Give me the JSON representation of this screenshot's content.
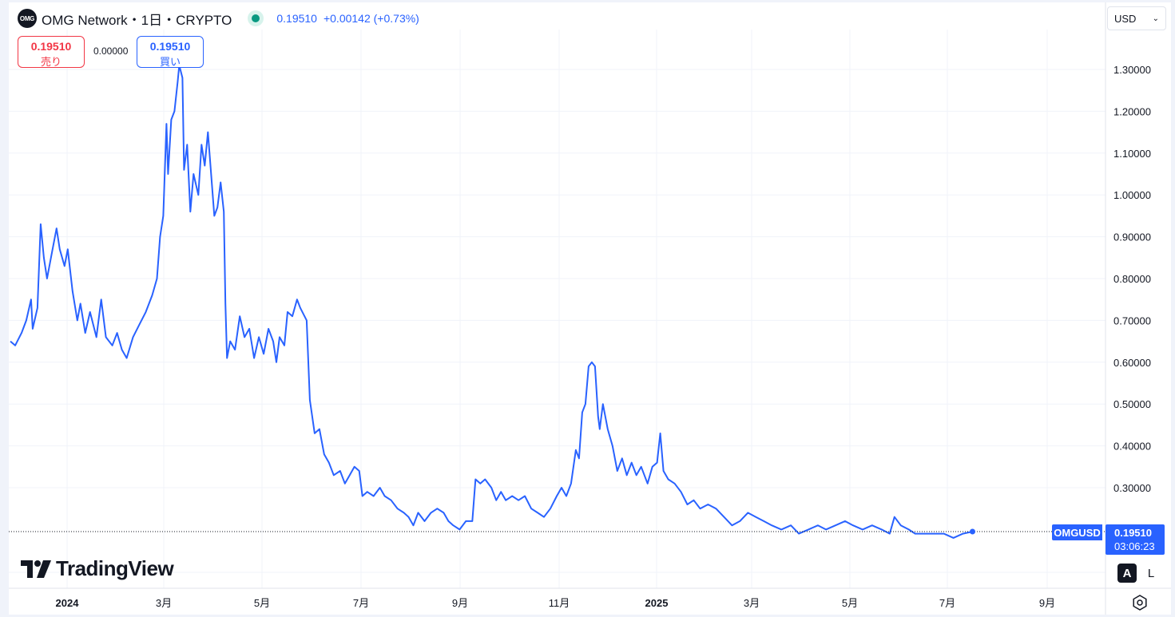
{
  "legend": {
    "logo_text": "OMG",
    "title": "OMG Network・1日・CRYPTO",
    "last_price": "0.19510",
    "change": "+0.00142 (+0.73%)"
  },
  "trade": {
    "sell_price": "0.19510",
    "sell_label": "売り",
    "spread": "0.00000",
    "buy_price": "0.19510",
    "buy_label": "買い"
  },
  "currency": {
    "value": "USD",
    "icon": "chevron-down-icon"
  },
  "price_labels": {
    "symbol": "OMGUSD",
    "price": "0.19510",
    "countdown": "03:06:23"
  },
  "scale_buttons": {
    "auto": "A",
    "log": "L"
  },
  "settings_icon": "gear-icon",
  "watermark": {
    "logo_text": "17",
    "brand": "TradingView"
  },
  "colors": {
    "line": "#2962ff",
    "sell": "#f23645",
    "buy": "#2962ff",
    "status": "#089981",
    "grid": "#f0f3fa"
  },
  "chart_data": {
    "type": "line",
    "series_name": "OMGUSD",
    "y_ticks": [
      "1.30000",
      "1.20000",
      "1.10000",
      "1.00000",
      "0.90000",
      "0.80000",
      "0.70000",
      "0.60000",
      "0.50000",
      "0.40000",
      "0.30000"
    ],
    "x_ticks": [
      {
        "label": "2024",
        "bold": true
      },
      {
        "label": "3月",
        "bold": false
      },
      {
        "label": "5月",
        "bold": false
      },
      {
        "label": "7月",
        "bold": false
      },
      {
        "label": "9月",
        "bold": false
      },
      {
        "label": "11月",
        "bold": false
      },
      {
        "label": "2025",
        "bold": true
      },
      {
        "label": "3月",
        "bold": false
      },
      {
        "label": "5月",
        "bold": false
      },
      {
        "label": "7月",
        "bold": false
      },
      {
        "label": "9月",
        "bold": false
      }
    ],
    "ylim": [
      0.16,
      1.34
    ],
    "x_range": [
      "2023-11-27",
      "2025-10-15"
    ],
    "last_value": 0.1951,
    "points": [
      [
        "2023-11-28",
        0.65
      ],
      [
        "2023-12-01",
        0.64
      ],
      [
        "2023-12-05",
        0.67
      ],
      [
        "2023-12-08",
        0.7
      ],
      [
        "2023-12-11",
        0.75
      ],
      [
        "2023-12-12",
        0.68
      ],
      [
        "2023-12-15",
        0.73
      ],
      [
        "2023-12-17",
        0.93
      ],
      [
        "2023-12-19",
        0.85
      ],
      [
        "2023-12-21",
        0.8
      ],
      [
        "2023-12-24",
        0.86
      ],
      [
        "2023-12-27",
        0.92
      ],
      [
        "2023-12-29",
        0.87
      ],
      [
        "2024-01-01",
        0.83
      ],
      [
        "2024-01-03",
        0.87
      ],
      [
        "2024-01-06",
        0.77
      ],
      [
        "2024-01-09",
        0.7
      ],
      [
        "2024-01-11",
        0.74
      ],
      [
        "2024-01-14",
        0.67
      ],
      [
        "2024-01-17",
        0.72
      ],
      [
        "2024-01-21",
        0.66
      ],
      [
        "2024-01-24",
        0.75
      ],
      [
        "2024-01-27",
        0.66
      ],
      [
        "2024-01-31",
        0.64
      ],
      [
        "2024-02-03",
        0.67
      ],
      [
        "2024-02-06",
        0.63
      ],
      [
        "2024-02-09",
        0.61
      ],
      [
        "2024-02-13",
        0.66
      ],
      [
        "2024-02-17",
        0.69
      ],
      [
        "2024-02-21",
        0.72
      ],
      [
        "2024-02-25",
        0.76
      ],
      [
        "2024-02-28",
        0.8
      ],
      [
        "2024-03-01",
        0.9
      ],
      [
        "2024-03-03",
        0.95
      ],
      [
        "2024-03-05",
        1.17
      ],
      [
        "2024-03-06",
        1.05
      ],
      [
        "2024-03-08",
        1.18
      ],
      [
        "2024-03-10",
        1.2
      ],
      [
        "2024-03-12",
        1.27
      ],
      [
        "2024-03-13",
        1.31
      ],
      [
        "2024-03-15",
        1.28
      ],
      [
        "2024-03-16",
        1.06
      ],
      [
        "2024-03-18",
        1.12
      ],
      [
        "2024-03-20",
        0.96
      ],
      [
        "2024-03-22",
        1.05
      ],
      [
        "2024-03-25",
        1.0
      ],
      [
        "2024-03-27",
        1.12
      ],
      [
        "2024-03-29",
        1.07
      ],
      [
        "2024-03-31",
        1.15
      ],
      [
        "2024-04-02",
        1.05
      ],
      [
        "2024-04-04",
        0.95
      ],
      [
        "2024-04-06",
        0.97
      ],
      [
        "2024-04-08",
        1.03
      ],
      [
        "2024-04-10",
        0.96
      ],
      [
        "2024-04-11",
        0.74
      ],
      [
        "2024-04-12",
        0.61
      ],
      [
        "2024-04-14",
        0.65
      ],
      [
        "2024-04-17",
        0.63
      ],
      [
        "2024-04-20",
        0.71
      ],
      [
        "2024-04-23",
        0.66
      ],
      [
        "2024-04-26",
        0.68
      ],
      [
        "2024-04-29",
        0.61
      ],
      [
        "2024-05-02",
        0.66
      ],
      [
        "2024-05-05",
        0.62
      ],
      [
        "2024-05-08",
        0.68
      ],
      [
        "2024-05-11",
        0.65
      ],
      [
        "2024-05-13",
        0.6
      ],
      [
        "2024-05-15",
        0.66
      ],
      [
        "2024-05-18",
        0.64
      ],
      [
        "2024-05-20",
        0.72
      ],
      [
        "2024-05-23",
        0.71
      ],
      [
        "2024-05-26",
        0.75
      ],
      [
        "2024-05-28",
        0.73
      ],
      [
        "2024-06-01",
        0.7
      ],
      [
        "2024-06-03",
        0.51
      ],
      [
        "2024-06-06",
        0.43
      ],
      [
        "2024-06-09",
        0.44
      ],
      [
        "2024-06-12",
        0.38
      ],
      [
        "2024-06-15",
        0.36
      ],
      [
        "2024-06-18",
        0.33
      ],
      [
        "2024-06-22",
        0.34
      ],
      [
        "2024-06-25",
        0.31
      ],
      [
        "2024-06-28",
        0.33
      ],
      [
        "2024-07-01",
        0.35
      ],
      [
        "2024-07-04",
        0.34
      ],
      [
        "2024-07-06",
        0.28
      ],
      [
        "2024-07-09",
        0.29
      ],
      [
        "2024-07-13",
        0.28
      ],
      [
        "2024-07-17",
        0.3
      ],
      [
        "2024-07-20",
        0.28
      ],
      [
        "2024-07-24",
        0.27
      ],
      [
        "2024-07-28",
        0.25
      ],
      [
        "2024-08-01",
        0.24
      ],
      [
        "2024-08-04",
        0.23
      ],
      [
        "2024-08-07",
        0.21
      ],
      [
        "2024-08-10",
        0.24
      ],
      [
        "2024-08-14",
        0.22
      ],
      [
        "2024-08-18",
        0.24
      ],
      [
        "2024-08-22",
        0.25
      ],
      [
        "2024-08-26",
        0.24
      ],
      [
        "2024-08-29",
        0.22
      ],
      [
        "2024-09-01",
        0.21
      ],
      [
        "2024-09-05",
        0.2
      ],
      [
        "2024-09-09",
        0.22
      ],
      [
        "2024-09-13",
        0.22
      ],
      [
        "2024-09-15",
        0.32
      ],
      [
        "2024-09-18",
        0.31
      ],
      [
        "2024-09-21",
        0.32
      ],
      [
        "2024-09-25",
        0.3
      ],
      [
        "2024-09-28",
        0.27
      ],
      [
        "2024-10-01",
        0.29
      ],
      [
        "2024-10-04",
        0.27
      ],
      [
        "2024-10-08",
        0.28
      ],
      [
        "2024-10-12",
        0.27
      ],
      [
        "2024-10-16",
        0.28
      ],
      [
        "2024-10-20",
        0.25
      ],
      [
        "2024-10-24",
        0.24
      ],
      [
        "2024-10-28",
        0.23
      ],
      [
        "2024-11-01",
        0.25
      ],
      [
        "2024-11-05",
        0.28
      ],
      [
        "2024-11-08",
        0.3
      ],
      [
        "2024-11-11",
        0.28
      ],
      [
        "2024-11-14",
        0.31
      ],
      [
        "2024-11-17",
        0.39
      ],
      [
        "2024-11-19",
        0.37
      ],
      [
        "2024-11-21",
        0.48
      ],
      [
        "2024-11-23",
        0.5
      ],
      [
        "2024-11-25",
        0.59
      ],
      [
        "2024-11-27",
        0.6
      ],
      [
        "2024-11-29",
        0.59
      ],
      [
        "2024-12-01",
        0.47
      ],
      [
        "2024-12-02",
        0.44
      ],
      [
        "2024-12-04",
        0.5
      ],
      [
        "2024-12-07",
        0.44
      ],
      [
        "2024-12-10",
        0.4
      ],
      [
        "2024-12-13",
        0.34
      ],
      [
        "2024-12-16",
        0.37
      ],
      [
        "2024-12-19",
        0.33
      ],
      [
        "2024-12-22",
        0.36
      ],
      [
        "2024-12-25",
        0.33
      ],
      [
        "2024-12-28",
        0.35
      ],
      [
        "2025-01-01",
        0.31
      ],
      [
        "2025-01-04",
        0.35
      ],
      [
        "2025-01-07",
        0.36
      ],
      [
        "2025-01-09",
        0.43
      ],
      [
        "2025-01-11",
        0.34
      ],
      [
        "2025-01-14",
        0.32
      ],
      [
        "2025-01-18",
        0.31
      ],
      [
        "2025-01-22",
        0.29
      ],
      [
        "2025-01-26",
        0.26
      ],
      [
        "2025-01-30",
        0.27
      ],
      [
        "2025-02-03",
        0.25
      ],
      [
        "2025-02-08",
        0.26
      ],
      [
        "2025-02-13",
        0.25
      ],
      [
        "2025-02-18",
        0.23
      ],
      [
        "2025-02-23",
        0.21
      ],
      [
        "2025-02-28",
        0.22
      ],
      [
        "2025-03-05",
        0.24
      ],
      [
        "2025-03-10",
        0.23
      ],
      [
        "2025-03-15",
        0.22
      ],
      [
        "2025-03-20",
        0.21
      ],
      [
        "2025-03-26",
        0.2
      ],
      [
        "2025-04-01",
        0.21
      ],
      [
        "2025-04-06",
        0.19
      ],
      [
        "2025-04-12",
        0.2
      ],
      [
        "2025-04-18",
        0.21
      ],
      [
        "2025-04-23",
        0.2
      ],
      [
        "2025-04-29",
        0.21
      ],
      [
        "2025-05-05",
        0.22
      ],
      [
        "2025-05-10",
        0.21
      ],
      [
        "2025-05-16",
        0.2
      ],
      [
        "2025-05-22",
        0.21
      ],
      [
        "2025-05-28",
        0.2
      ],
      [
        "2025-06-02",
        0.19
      ],
      [
        "2025-06-05",
        0.23
      ],
      [
        "2025-06-09",
        0.21
      ],
      [
        "2025-06-14",
        0.2
      ],
      [
        "2025-06-18",
        0.19
      ],
      [
        "2025-06-24",
        0.19
      ],
      [
        "2025-06-30",
        0.19
      ],
      [
        "2025-07-06",
        0.19
      ],
      [
        "2025-07-12",
        0.18
      ],
      [
        "2025-07-18",
        0.19
      ],
      [
        "2025-07-24",
        0.1951
      ]
    ]
  }
}
